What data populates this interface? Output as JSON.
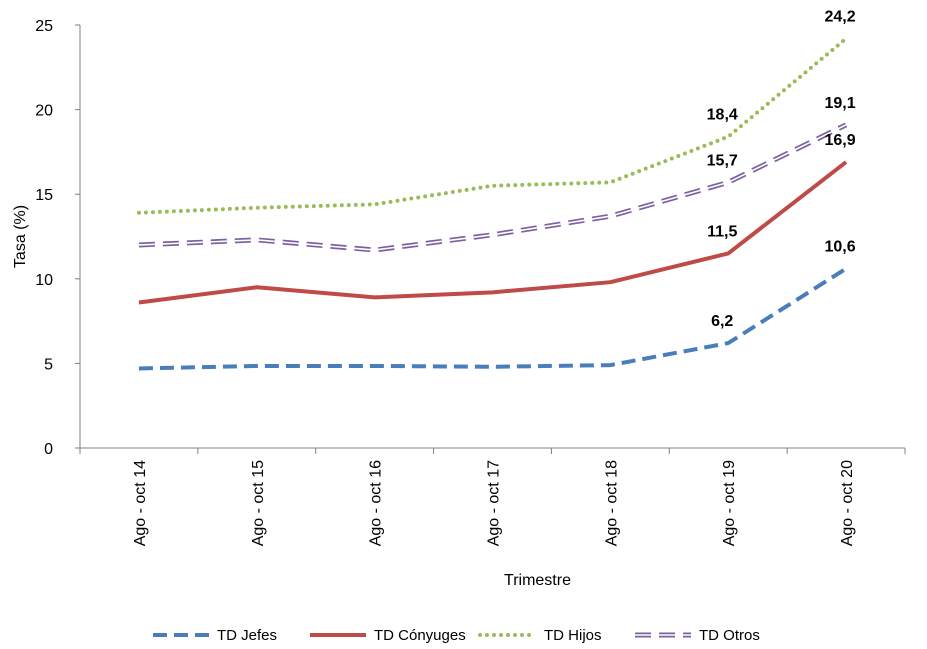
{
  "chart_data": {
    "type": "line",
    "title": "",
    "xlabel": "Trimestre",
    "ylabel": "Tasa (%)",
    "ylim": [
      0,
      25
    ],
    "yticks": [
      0,
      5,
      10,
      15,
      20,
      25
    ],
    "grid": false,
    "legend_position": "bottom",
    "categories": [
      "Ago - oct 14",
      "Ago - oct 15",
      "Ago - oct 16",
      "Ago - oct 17",
      "Ago - oct 18",
      "Ago - oct 19",
      "Ago - oct 20"
    ],
    "series": [
      {
        "name": "TD Jefes",
        "color": "#4A7EBB",
        "style": "dashed",
        "values": [
          4.7,
          4.85,
          4.85,
          4.8,
          4.9,
          6.2,
          10.6
        ],
        "labels": [
          "",
          "",
          "",
          "",
          "",
          "6,2",
          "10,6"
        ]
      },
      {
        "name": "TD Cónyuges",
        "color": "#BE4B48",
        "style": "solid",
        "values": [
          8.6,
          9.5,
          8.9,
          9.2,
          9.8,
          11.5,
          16.9
        ],
        "labels": [
          "",
          "",
          "",
          "",
          "",
          "11,5",
          "16,9"
        ]
      },
      {
        "name": "TD Hijos",
        "color": "#9BBB59",
        "style": "dotted",
        "values": [
          13.9,
          14.2,
          14.4,
          15.5,
          15.7,
          18.4,
          24.2
        ],
        "labels": [
          "",
          "",
          "",
          "",
          "",
          "18,4",
          "24,2"
        ]
      },
      {
        "name": "TD Otros",
        "color": "#7D60A0",
        "style": "double-dash",
        "values": [
          12.0,
          12.3,
          11.7,
          12.6,
          13.7,
          15.7,
          19.1
        ],
        "labels": [
          "",
          "",
          "",
          "",
          "",
          "15,7",
          "19,1"
        ]
      }
    ]
  }
}
